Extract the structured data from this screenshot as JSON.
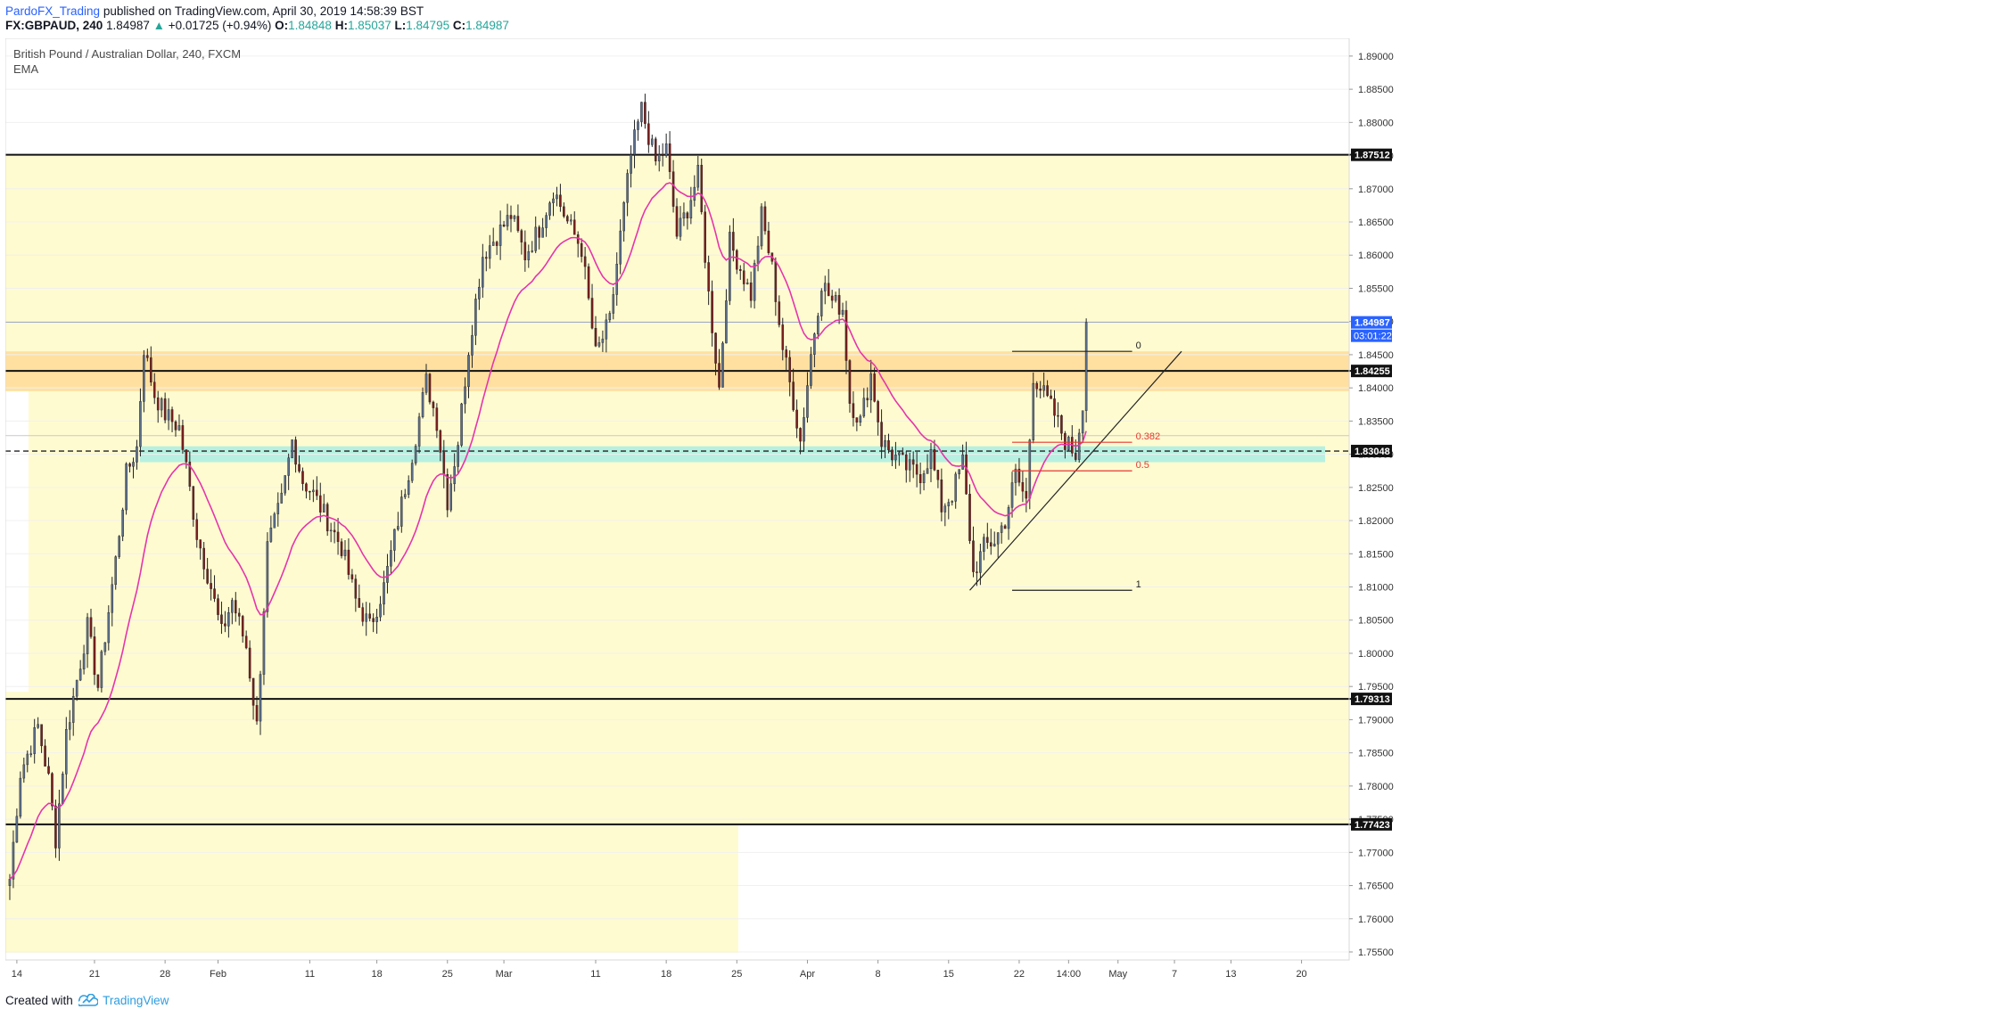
{
  "header": {
    "username": "PardoFX_Trading",
    "published_text": "published on TradingView.com, April 30, 2019 14:58:39 BST",
    "symbol": "FX:GBPAUD, 240",
    "last": "1.84987",
    "change": "+0.01725 (+0.94%)",
    "o_label": "O:",
    "o_value": "1.84848",
    "h_label": "H:",
    "h_value": "1.85037",
    "l_label": "L:",
    "l_value": "1.84795",
    "c_label": "C:",
    "c_value": "1.84987"
  },
  "legend": {
    "title": "British Pound / Australian Dollar, 240, FXCM",
    "indicator": "EMA"
  },
  "footer": {
    "created_with": "Created with",
    "brand": "TradingView"
  },
  "colors": {
    "zone": "#fffbd0",
    "orange_band": "#ffe0a0",
    "teal_band": "#b7f0e0",
    "ema": "#e535ab",
    "bull": "#5b6e8a",
    "bear": "#7a1e1e",
    "fib_red": "#e53935",
    "last_price_bg": "#2962ff"
  },
  "chart_data": {
    "type": "candlestick",
    "title": "British Pound / Australian Dollar, 240, FXCM",
    "indicator": "EMA",
    "ylim": [
      1.755,
      1.892
    ],
    "y_ticks": [
      "1.89000",
      "1.88500",
      "1.88000",
      "1.87500",
      "1.87000",
      "1.86500",
      "1.86000",
      "1.85500",
      "1.85000",
      "1.84500",
      "1.84000",
      "1.83500",
      "1.83000",
      "1.82500",
      "1.82000",
      "1.81500",
      "1.81000",
      "1.80500",
      "1.80000",
      "1.79500",
      "1.79000",
      "1.78500",
      "1.78000",
      "1.77500",
      "1.77000",
      "1.76500",
      "1.76000",
      "1.75500"
    ],
    "x_ticks": [
      "14",
      "21",
      "28",
      "Feb",
      "11",
      "18",
      "25",
      "Mar",
      "11",
      "18",
      "25",
      "Apr",
      "8",
      "15",
      "22",
      "14:00",
      "May",
      "7",
      "13",
      "20"
    ],
    "x_tick_index": [
      2,
      24,
      44,
      59,
      85,
      104,
      124,
      140,
      166,
      186,
      206,
      226,
      246,
      266,
      286,
      300,
      314,
      330,
      346,
      366
    ],
    "horizontal_levels": [
      {
        "value": 1.87512,
        "label": "1.87512"
      },
      {
        "value": 1.84255,
        "label": "1.84255"
      },
      {
        "value": 1.83048,
        "label": "1.83048",
        "dashed": true
      },
      {
        "value": 1.79313,
        "label": "1.79313"
      },
      {
        "value": 1.77423,
        "label": "1.77423"
      }
    ],
    "last_price": {
      "value": 1.84987,
      "label": "1.84987",
      "countdown": "03:01:22"
    },
    "zones": [
      {
        "name": "orange-band",
        "from": 1.8395,
        "to": 1.8455
      },
      {
        "name": "teal-band",
        "from": 1.8288,
        "to": 1.8312
      }
    ],
    "fib_levels": [
      {
        "label": "0",
        "value": 1.8455
      },
      {
        "label": "0.382",
        "value": 1.8318
      },
      {
        "label": "0.5",
        "value": 1.8275
      },
      {
        "label": "1",
        "value": 1.8095
      }
    ],
    "waypoints": [
      [
        0,
        1.766
      ],
      [
        3,
        1.782
      ],
      [
        8,
        1.789
      ],
      [
        11,
        1.781
      ],
      [
        13,
        1.772
      ],
      [
        16,
        1.788
      ],
      [
        22,
        1.804
      ],
      [
        25,
        1.795
      ],
      [
        30,
        1.814
      ],
      [
        33,
        1.827
      ],
      [
        36,
        1.831
      ],
      [
        38,
        1.846
      ],
      [
        41,
        1.839
      ],
      [
        44,
        1.836
      ],
      [
        48,
        1.834
      ],
      [
        50,
        1.828
      ],
      [
        53,
        1.818
      ],
      [
        57,
        1.81
      ],
      [
        60,
        1.803
      ],
      [
        63,
        1.808
      ],
      [
        67,
        1.801
      ],
      [
        70,
        1.789
      ],
      [
        73,
        1.816
      ],
      [
        77,
        1.823
      ],
      [
        80,
        1.832
      ],
      [
        83,
        1.826
      ],
      [
        86,
        1.824
      ],
      [
        90,
        1.82
      ],
      [
        94,
        1.816
      ],
      [
        98,
        1.808
      ],
      [
        102,
        1.804
      ],
      [
        106,
        1.81
      ],
      [
        110,
        1.82
      ],
      [
        114,
        1.83
      ],
      [
        118,
        1.841
      ],
      [
        121,
        1.835
      ],
      [
        124,
        1.823
      ],
      [
        127,
        1.832
      ],
      [
        130,
        1.846
      ],
      [
        134,
        1.86
      ],
      [
        138,
        1.863
      ],
      [
        142,
        1.866
      ],
      [
        146,
        1.86
      ],
      [
        150,
        1.864
      ],
      [
        154,
        1.87
      ],
      [
        158,
        1.865
      ],
      [
        162,
        1.861
      ],
      [
        166,
        1.845
      ],
      [
        170,
        1.85
      ],
      [
        173,
        1.863
      ],
      [
        176,
        1.875
      ],
      [
        179,
        1.882
      ],
      [
        183,
        1.874
      ],
      [
        186,
        1.876
      ],
      [
        189,
        1.863
      ],
      [
        192,
        1.867
      ],
      [
        195,
        1.872
      ],
      [
        198,
        1.854
      ],
      [
        201,
        1.84
      ],
      [
        204,
        1.862
      ],
      [
        207,
        1.858
      ],
      [
        210,
        1.854
      ],
      [
        213,
        1.866
      ],
      [
        216,
        1.858
      ],
      [
        219,
        1.846
      ],
      [
        222,
        1.838
      ],
      [
        224,
        1.832
      ],
      [
        227,
        1.845
      ],
      [
        230,
        1.856
      ],
      [
        233,
        1.853
      ],
      [
        236,
        1.852
      ],
      [
        238,
        1.838
      ],
      [
        241,
        1.835
      ],
      [
        244,
        1.842
      ],
      [
        247,
        1.832
      ],
      [
        250,
        1.83
      ],
      [
        254,
        1.828
      ],
      [
        258,
        1.827
      ],
      [
        261,
        1.83
      ],
      [
        264,
        1.822
      ],
      [
        267,
        1.824
      ],
      [
        270,
        1.829
      ],
      [
        273,
        1.812
      ],
      [
        276,
        1.816
      ],
      [
        279,
        1.817
      ],
      [
        282,
        1.82
      ],
      [
        285,
        1.827
      ],
      [
        288,
        1.823
      ],
      [
        290,
        1.842
      ],
      [
        293,
        1.839
      ],
      [
        296,
        1.836
      ],
      [
        299,
        1.832
      ],
      [
        302,
        1.83
      ],
      [
        304,
        1.838
      ],
      [
        305,
        1.8499
      ]
    ]
  }
}
